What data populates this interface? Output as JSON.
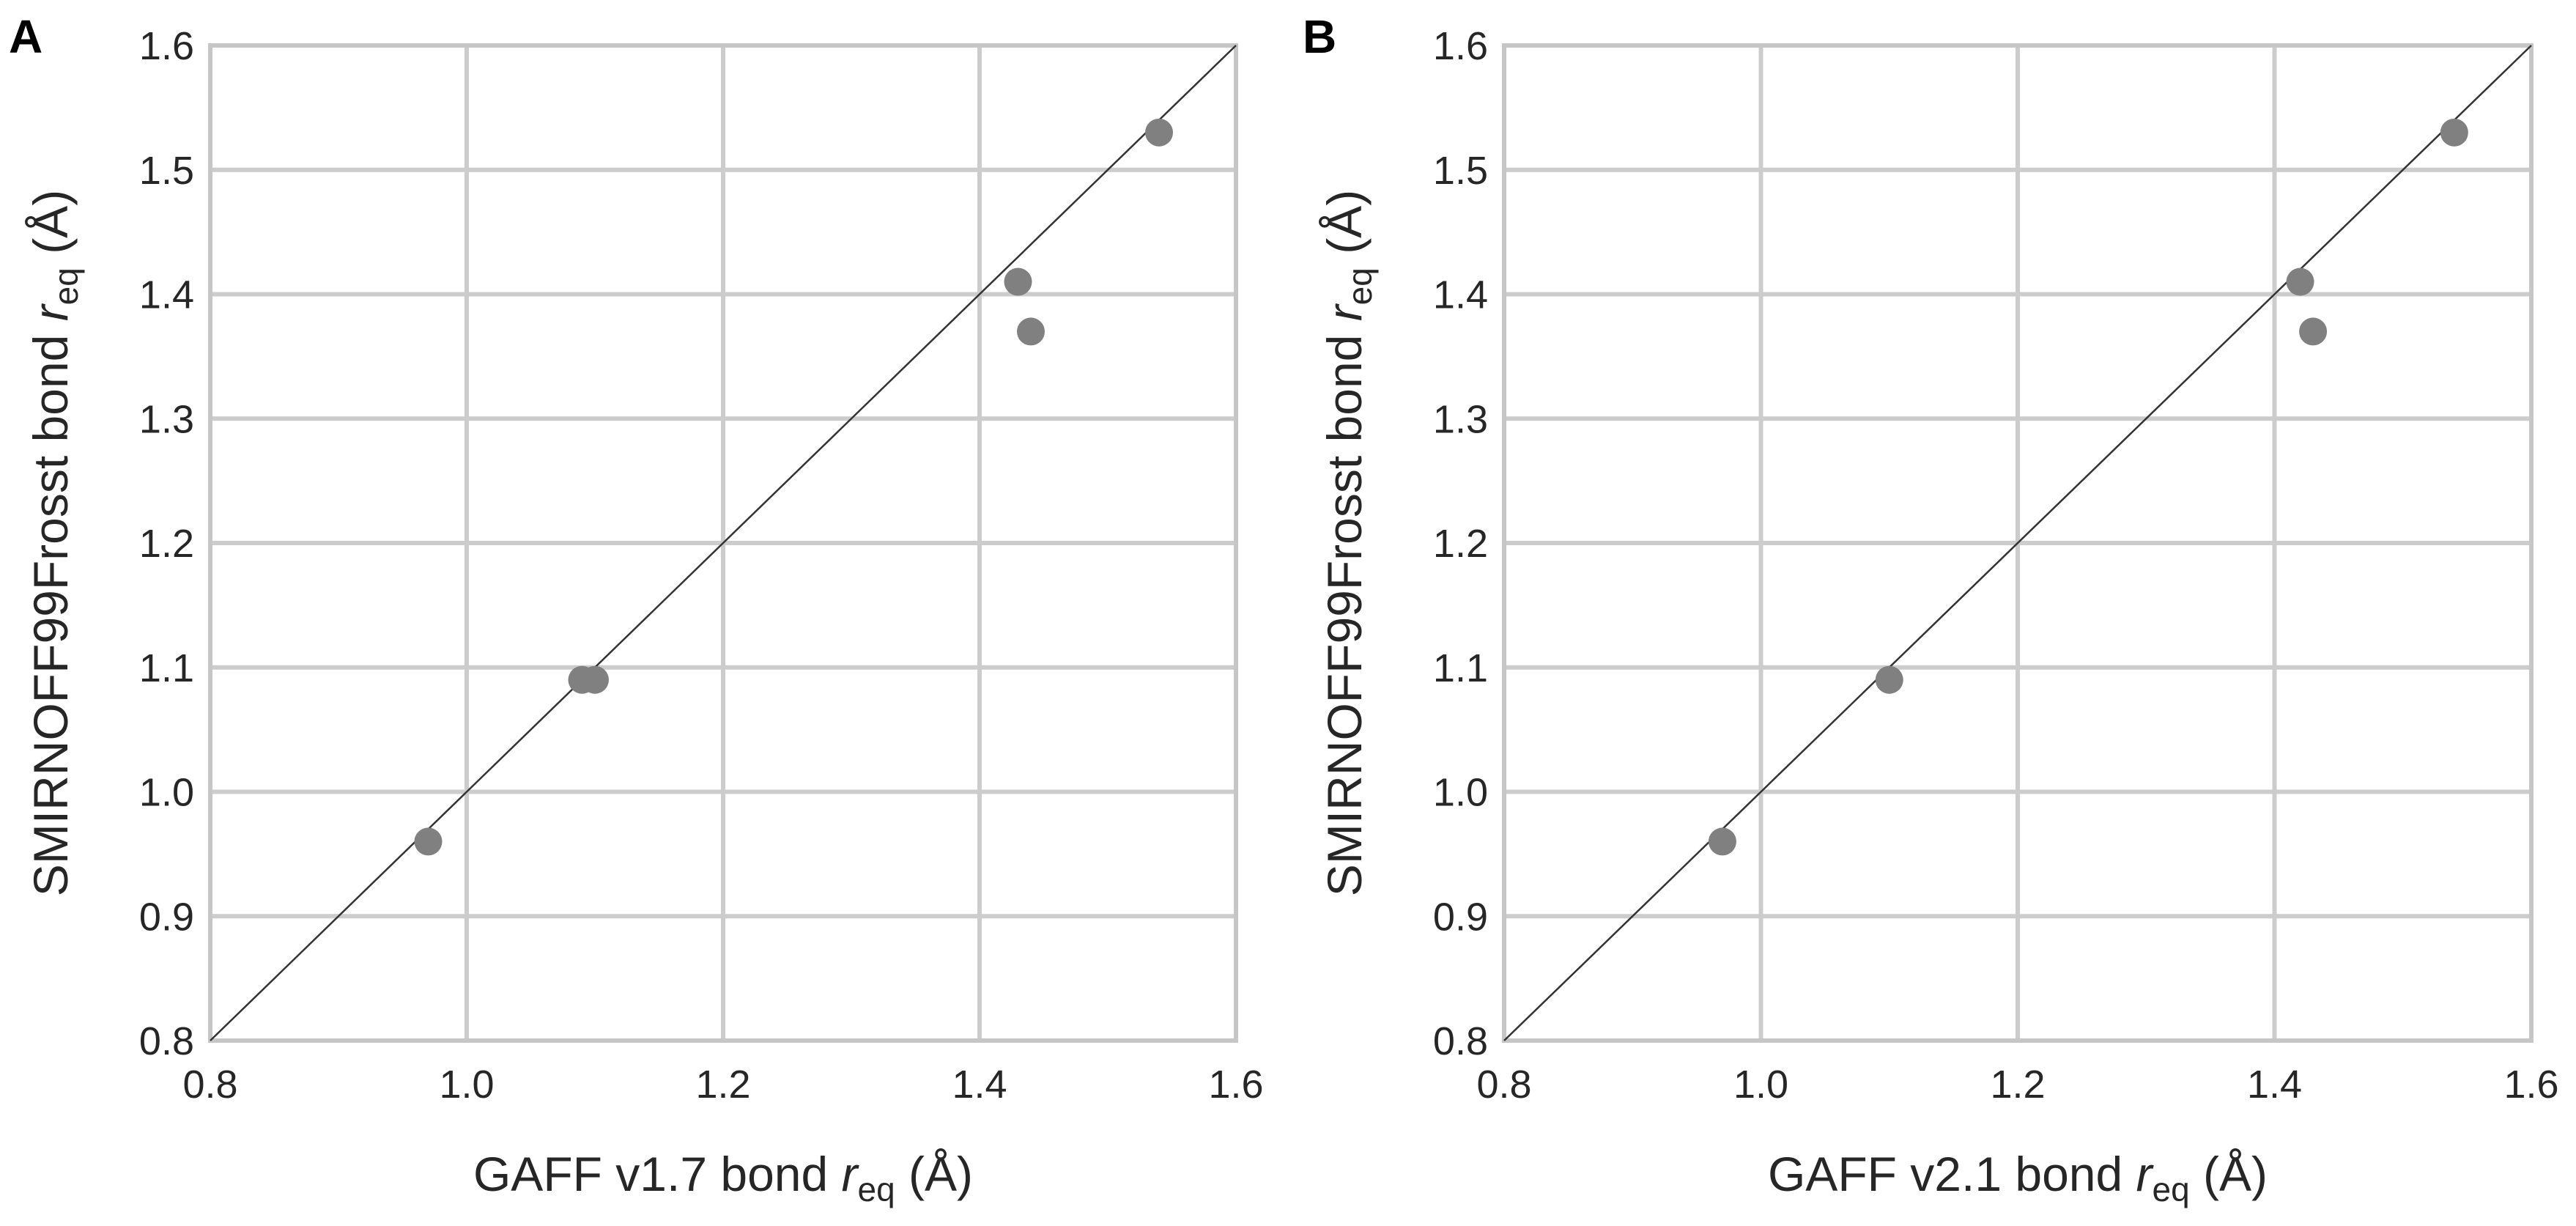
{
  "chart_data": [
    {
      "type": "scatter",
      "panel_label": "A",
      "title": "",
      "xlabel": {
        "main": "GAFF v1.7 bond ",
        "var": "r",
        "sub": "eq",
        "unit": " (Å)"
      },
      "ylabel": {
        "main": "SMIRNOFF99Frosst bond ",
        "var": "r",
        "sub": "eq",
        "unit": " (Å)"
      },
      "xlim": [
        0.8,
        1.6
      ],
      "ylim": [
        0.8,
        1.6
      ],
      "xticks": [
        "0.8",
        "1.0",
        "1.2",
        "1.4",
        "1.6"
      ],
      "yticks": [
        "0.8",
        "0.9",
        "1.0",
        "1.1",
        "1.2",
        "1.3",
        "1.4",
        "1.5",
        "1.6"
      ],
      "grid": true,
      "identity_line": true,
      "point_color": "#808080",
      "points": [
        {
          "x": 0.97,
          "y": 0.96
        },
        {
          "x": 1.09,
          "y": 1.09
        },
        {
          "x": 1.1,
          "y": 1.09
        },
        {
          "x": 1.43,
          "y": 1.41
        },
        {
          "x": 1.44,
          "y": 1.37
        },
        {
          "x": 1.54,
          "y": 1.53
        }
      ]
    },
    {
      "type": "scatter",
      "panel_label": "B",
      "title": "",
      "xlabel": {
        "main": "GAFF v2.1 bond ",
        "var": "r",
        "sub": "eq",
        "unit": " (Å)"
      },
      "ylabel": {
        "main": "SMIRNOFF99Frosst bond ",
        "var": "r",
        "sub": "eq",
        "unit": " (Å)"
      },
      "xlim": [
        0.8,
        1.6
      ],
      "ylim": [
        0.8,
        1.6
      ],
      "xticks": [
        "0.8",
        "1.0",
        "1.2",
        "1.4",
        "1.6"
      ],
      "yticks": [
        "0.8",
        "0.9",
        "1.0",
        "1.1",
        "1.2",
        "1.3",
        "1.4",
        "1.5",
        "1.6"
      ],
      "grid": true,
      "identity_line": true,
      "point_color": "#808080",
      "points": [
        {
          "x": 0.97,
          "y": 0.96
        },
        {
          "x": 1.1,
          "y": 1.09
        },
        {
          "x": 1.42,
          "y": 1.41
        },
        {
          "x": 1.43,
          "y": 1.37
        },
        {
          "x": 1.54,
          "y": 1.53
        }
      ]
    }
  ]
}
